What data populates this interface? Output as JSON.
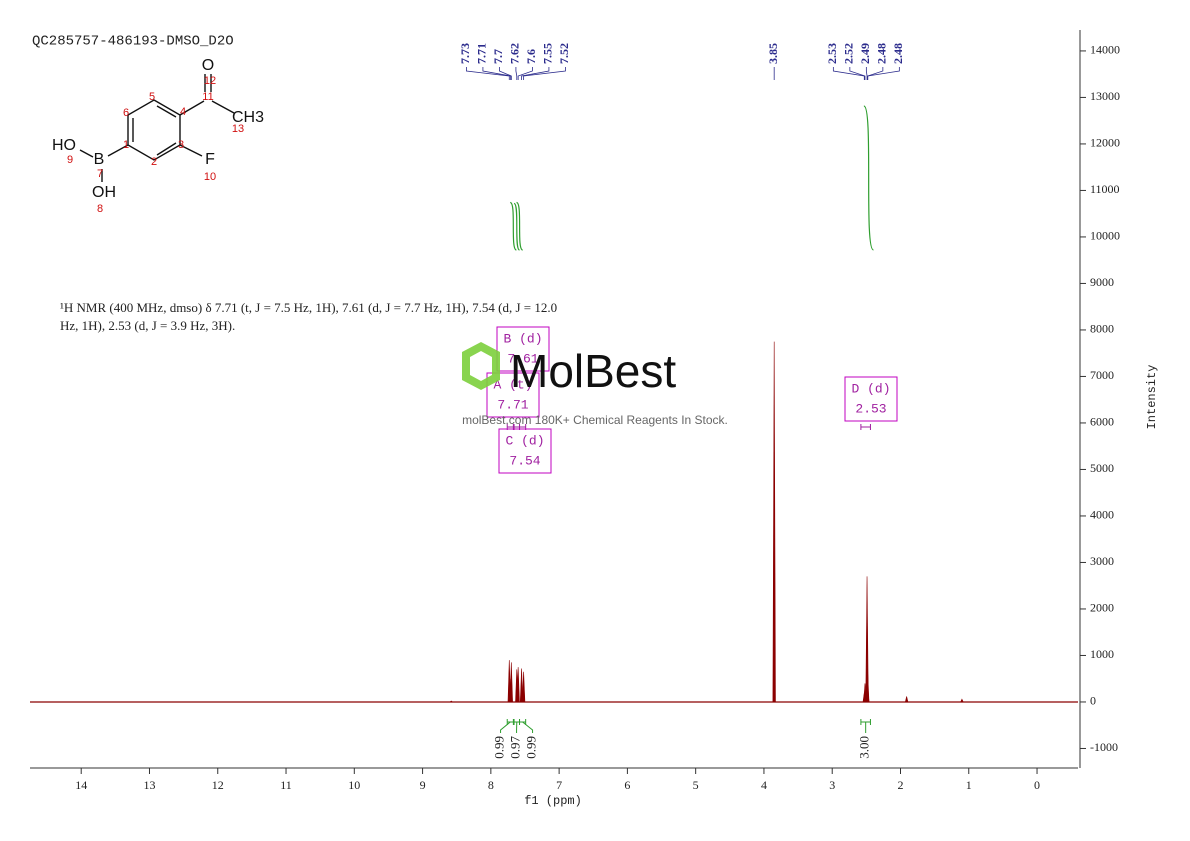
{
  "chart_data": {
    "type": "nmr",
    "title": "QC285757-486193-DMSO_D2O",
    "description": [
      "¹H NMR (400 MHz, dmso) δ 7.71 (t, J = 7.5 Hz, 1H), 7.61 (d, J = 7.7 Hz, 1H), 7.54 (d, J = 12.0",
      "Hz, 1H), 2.53 (d, J = 3.9 Hz, 3H)."
    ],
    "x_label": "f1 (ppm)",
    "y_label": "Intensity",
    "xlim": [
      14.75,
      -0.6
    ],
    "xticks": [
      14,
      13,
      12,
      11,
      10,
      9,
      8,
      7,
      6,
      5,
      4,
      3,
      2,
      1,
      0
    ],
    "ylim": [
      -1420,
      14450
    ],
    "yticks": [
      -1000,
      0,
      1000,
      2000,
      3000,
      4000,
      5000,
      6000,
      7000,
      8000,
      9000,
      10000,
      11000,
      12000,
      13000,
      14000
    ],
    "color": "#8b0000",
    "peaks": {
      "ppm": [
        7.73,
        7.71,
        7.7,
        7.62,
        7.6,
        7.55,
        7.52,
        3.85,
        2.53,
        2.52,
        2.49,
        2.48,
        2.48
      ],
      "intensity": [
        900,
        500,
        850,
        700,
        750,
        720,
        650,
        7750,
        200,
        400,
        2700,
        600,
        300
      ]
    },
    "minor_peaks": {
      "ppm": [
        8.58,
        1.91,
        1.1
      ],
      "intensity": [
        20,
        120,
        60
      ]
    },
    "multiplets": [
      {
        "label": "A (t)",
        "shift": 7.71,
        "range": [
          7.76,
          7.67
        ],
        "integral": 0.99
      },
      {
        "label": "B (d)",
        "shift": 7.61,
        "range": [
          7.66,
          7.58
        ],
        "integral": 0.97
      },
      {
        "label": "C (d)",
        "shift": 7.54,
        "range": [
          7.58,
          7.49
        ],
        "integral": 0.99
      },
      {
        "label": "D (d)",
        "shift": 2.53,
        "range": [
          2.58,
          2.44
        ],
        "integral": {
          "value": 3,
          "label": "3.00"
        }
      }
    ],
    "watermark": {
      "brand": "MolBest",
      "tagline": "molBest.com 180K+ Chemical Reagents In Stock."
    }
  },
  "structure": {
    "atoms": [
      "O",
      "12",
      "11",
      "CH3",
      "13",
      "5",
      "4",
      "6",
      "HO",
      "9",
      "B",
      "1",
      "3",
      "F",
      "2",
      "7",
      "10",
      "OH",
      "8"
    ]
  }
}
